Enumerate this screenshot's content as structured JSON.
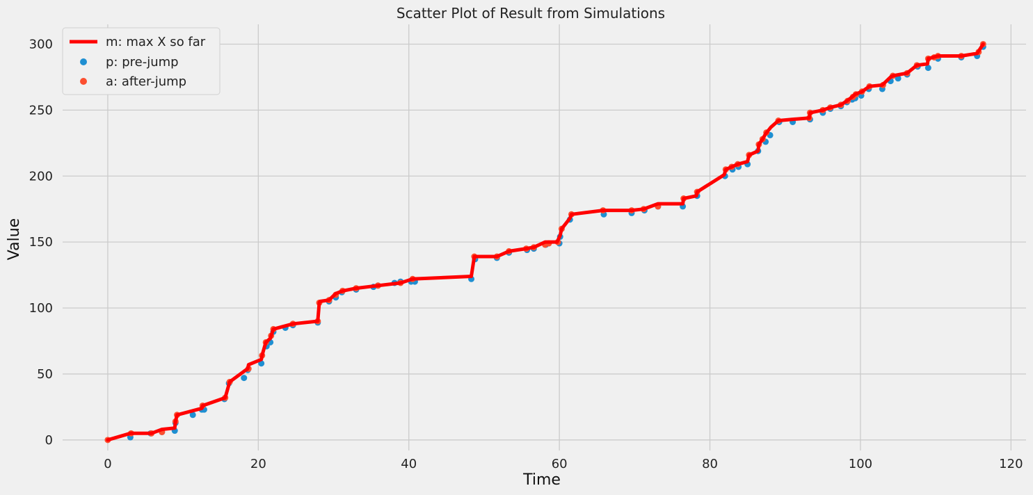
{
  "chart_data": {
    "type": "scatter",
    "title": "Scatter Plot of Result from Simulations",
    "xlabel": "Time",
    "ylabel": "Value",
    "xlim": [
      -6,
      122
    ],
    "ylim": [
      -8,
      315
    ],
    "xticks": [
      0,
      20,
      40,
      60,
      80,
      100,
      120
    ],
    "yticks": [
      0,
      50,
      100,
      150,
      200,
      250,
      300
    ],
    "grid": true,
    "legend_position": "upper-left",
    "colors": {
      "line": "#ff0000",
      "pre": "#1f8fd1",
      "after": "#fc4f30",
      "background": "#f0f0f0",
      "grid": "#cbcbcb"
    },
    "series": [
      {
        "name": "m: max X so far",
        "kind": "line",
        "x": [
          0,
          3,
          3.1,
          5.8,
          7.2,
          8.9,
          9.0,
          9.2,
          12.5,
          12.6,
          15.6,
          16.2,
          18.1,
          18.6,
          18.7,
          20.4,
          20.5,
          21.0,
          21.6,
          22.0,
          24.6,
          27.9,
          28.1,
          28.2,
          29.4,
          30.3,
          31.2,
          33.0,
          35.9,
          38.9,
          40.5,
          48.3,
          48.7,
          51.7,
          53.3,
          55.6,
          56.6,
          58.1,
          59.7,
          60.1,
          60.3,
          61.4,
          61.6,
          65.8,
          69.6,
          71.2,
          73.1,
          76.4,
          76.5,
          78.2,
          78.3,
          81.9,
          82.1,
          82.9,
          83.7,
          85.0,
          85.2,
          86.4,
          86.5,
          87.0,
          87.4,
          88.1,
          89.1,
          91.0,
          93.2,
          93.3,
          95.0,
          96.0,
          97.4,
          98.2,
          98.9,
          99.3,
          100.2,
          101.2,
          102.9,
          104.0,
          104.3,
          106.2,
          107.5,
          108.9,
          109.0,
          110.3,
          113.4,
          115.5,
          116.3
        ],
        "y": [
          0,
          5,
          5,
          5,
          8,
          9,
          14,
          19,
          24,
          26,
          32,
          44,
          52,
          54,
          57,
          61,
          64,
          74,
          77,
          84,
          88,
          90,
          104,
          105,
          106,
          111,
          113,
          115,
          117,
          119,
          122,
          124,
          139,
          139,
          143,
          145,
          146,
          150,
          150,
          155,
          160,
          168,
          171,
          174,
          174,
          175,
          179,
          179,
          183,
          185,
          188,
          201,
          205,
          207,
          209,
          211,
          216,
          219,
          224,
          228,
          232,
          237,
          242,
          243,
          244,
          248,
          250,
          252,
          254,
          257,
          260,
          262,
          264,
          268,
          269,
          275,
          276,
          278,
          284,
          285,
          289,
          291,
          291,
          293,
          300
        ]
      },
      {
        "name": "p: pre-jump",
        "kind": "scatter",
        "x": [
          3.0,
          5.7,
          7.2,
          8.9,
          9.0,
          11.3,
          12.5,
          12.8,
          15.5,
          16.1,
          18.1,
          18.6,
          20.4,
          21.1,
          21.6,
          22.0,
          23.6,
          24.6,
          27.9,
          29.4,
          30.3,
          31.1,
          33.0,
          35.3,
          35.9,
          38.1,
          38.9,
          40.3,
          40.8,
          48.3,
          48.8,
          51.7,
          53.3,
          55.7,
          56.6,
          58.2,
          60.0,
          60.1,
          61.4,
          65.9,
          69.6,
          71.3,
          73.1,
          76.4,
          78.3,
          82.0,
          83.0,
          83.8,
          85.0,
          86.4,
          87.4,
          88.0,
          89.2,
          91.0,
          93.3,
          95.0,
          96.0,
          97.4,
          98.2,
          98.9,
          99.3,
          100.1,
          101.1,
          102.9,
          104.0,
          105.0,
          106.2,
          107.6,
          109.0,
          110.3,
          113.4,
          115.5,
          116.3
        ],
        "y": [
          2,
          5,
          6,
          7,
          13,
          19,
          23,
          23,
          31,
          43,
          47,
          53,
          58,
          71,
          74,
          82,
          85,
          87,
          89,
          105,
          108,
          112,
          114,
          116,
          117,
          119,
          120,
          120,
          120,
          122,
          137,
          138,
          142,
          144,
          145,
          148,
          149,
          154,
          167,
          171,
          172,
          174,
          177,
          177,
          185,
          200,
          205,
          207,
          209,
          219,
          226,
          231,
          241,
          241,
          243,
          248,
          251,
          253,
          256,
          258,
          259,
          261,
          266,
          266,
          272,
          274,
          277,
          283,
          282,
          289,
          290,
          291,
          298
        ]
      },
      {
        "name": "a: after-jump",
        "kind": "scatter",
        "x": [
          0,
          3.1,
          5.8,
          7.2,
          9.0,
          9.2,
          12.6,
          15.6,
          16.2,
          18.7,
          20.5,
          21.0,
          21.7,
          22.0,
          24.6,
          27.9,
          28.1,
          29.4,
          30.3,
          31.2,
          33.0,
          35.9,
          38.9,
          40.5,
          48.7,
          51.7,
          53.3,
          55.6,
          56.6,
          58.1,
          58.6,
          59.8,
          60.3,
          61.6,
          65.8,
          69.6,
          71.2,
          73.1,
          76.5,
          78.3,
          82.1,
          82.9,
          83.7,
          85.2,
          86.5,
          87.0,
          87.5,
          89.1,
          93.2,
          93.3,
          95.0,
          96.0,
          97.4,
          98.3,
          99.0,
          99.4,
          100.2,
          101.2,
          103.0,
          104.3,
          106.2,
          107.5,
          109.0,
          109.8,
          110.3,
          113.4,
          115.7,
          116.3
        ],
        "y": [
          0,
          5,
          5,
          6,
          14,
          19,
          26,
          32,
          44,
          54,
          64,
          74,
          79,
          84,
          88,
          90,
          104,
          106,
          110,
          113,
          115,
          117,
          119,
          122,
          139,
          139,
          143,
          145,
          146,
          148,
          149,
          150,
          160,
          171,
          174,
          174,
          175,
          177,
          183,
          188,
          205,
          207,
          209,
          216,
          224,
          228,
          233,
          242,
          244,
          248,
          250,
          252,
          254,
          257,
          260,
          262,
          264,
          268,
          269,
          276,
          278,
          284,
          289,
          290,
          291,
          291,
          294,
          300
        ]
      }
    ]
  }
}
